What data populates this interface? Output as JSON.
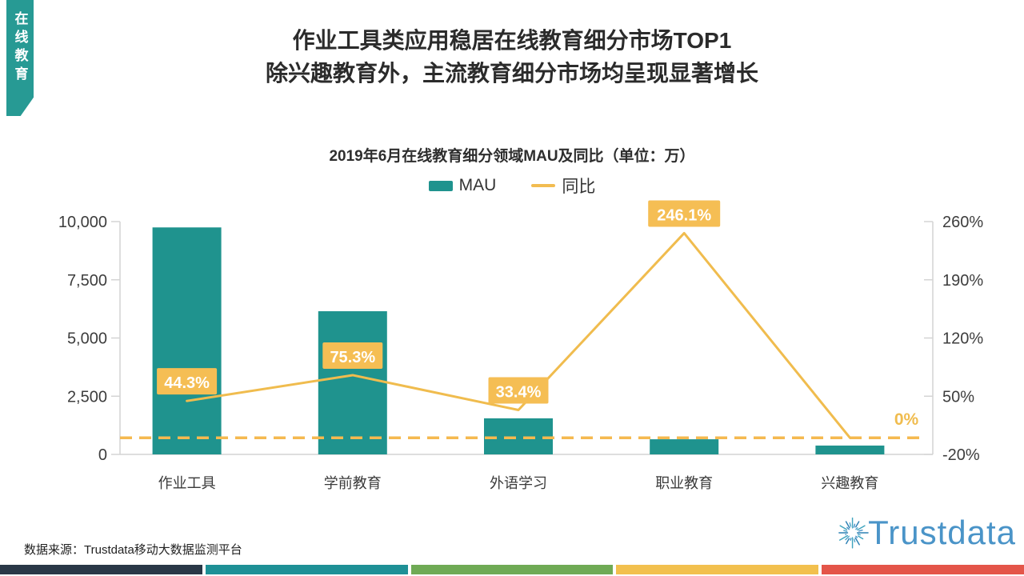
{
  "ribbon": {
    "label": "在线教育",
    "color": "#279A94"
  },
  "title": {
    "line1": "作业工具类应用稳居在线教育细分市场TOP1",
    "line2": "除兴趣教育外，主流教育细分市场均呈现显著增长"
  },
  "chart_data": {
    "type": "bar",
    "title": "2019年6月在线教育细分领域MAU及同比（单位：万）",
    "categories": [
      "作业工具",
      "学前教育",
      "外语学习",
      "职业教育",
      "兴趣教育"
    ],
    "series": [
      {
        "name": "MAU",
        "type": "bar",
        "unit": "万",
        "color": "#1F938E",
        "values": [
          9750,
          6150,
          1550,
          650,
          380
        ]
      },
      {
        "name": "同比",
        "type": "line",
        "unit": "%",
        "color": "#F0BC4E",
        "values": [
          44.3,
          75.3,
          33.4,
          246.1,
          0
        ],
        "labels": [
          "44.3%",
          "75.3%",
          "33.4%",
          "246.1%",
          "0%"
        ],
        "label_box_color": "#F5BE54"
      }
    ],
    "left_axis": {
      "min": 0,
      "max": 10000,
      "ticks": [
        "0",
        "2,500",
        "5,000",
        "7,500",
        "10,000"
      ]
    },
    "right_axis": {
      "min": -20,
      "max": 260,
      "ticks": [
        "-20%",
        "50%",
        "120%",
        "190%",
        "260%"
      ]
    },
    "reference_line": {
      "value": 0,
      "style": "dashed",
      "color": "#F5B94F"
    },
    "legend": [
      {
        "label": "MAU"
      },
      {
        "label": "同比"
      }
    ],
    "grid": "off",
    "legend_position": "top"
  },
  "footer": {
    "source": "数据来源：Trustdata移动大数据监测平台",
    "logo_text": "Trustdata",
    "logo_color": "#4A94C8"
  },
  "bottom_strip": [
    "#2A3847",
    "#1E9096",
    "#6FAA55",
    "#F2C04E",
    "#E45549"
  ]
}
